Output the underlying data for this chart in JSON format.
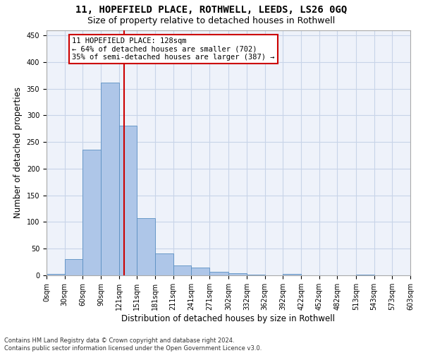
{
  "title1": "11, HOPEFIELD PLACE, ROTHWELL, LEEDS, LS26 0GQ",
  "title2": "Size of property relative to detached houses in Rothwell",
  "xlabel": "Distribution of detached houses by size in Rothwell",
  "ylabel": "Number of detached properties",
  "footnote": "Contains HM Land Registry data © Crown copyright and database right 2024.\nContains public sector information licensed under the Open Government Licence v3.0.",
  "bar_values": [
    3,
    31,
    236,
    362,
    280,
    107,
    41,
    19,
    14,
    6,
    4,
    1,
    0,
    2,
    0,
    0,
    0,
    1,
    0,
    0
  ],
  "bin_edges": [
    0,
    30,
    60,
    90,
    120,
    150,
    180,
    210,
    240,
    270,
    302,
    332,
    362,
    392,
    422,
    452,
    482,
    513,
    543,
    573,
    603
  ],
  "tick_labels": [
    "0sqm",
    "30sqm",
    "60sqm",
    "90sqm",
    "121sqm",
    "151sqm",
    "181sqm",
    "211sqm",
    "241sqm",
    "271sqm",
    "302sqm",
    "332sqm",
    "362sqm",
    "392sqm",
    "422sqm",
    "452sqm",
    "482sqm",
    "513sqm",
    "543sqm",
    "573sqm",
    "603sqm"
  ],
  "bar_color": "#aec6e8",
  "bar_edge_color": "#5a8fc2",
  "vline_x": 128,
  "vline_color": "#cc0000",
  "annotation_text": "11 HOPEFIELD PLACE: 128sqm\n← 64% of detached houses are smaller (702)\n35% of semi-detached houses are larger (387) →",
  "ylim": [
    0,
    460
  ],
  "yticks": [
    0,
    50,
    100,
    150,
    200,
    250,
    300,
    350,
    400,
    450
  ],
  "background_color": "#eef2fa",
  "grid_color": "#c8d4e8",
  "title1_fontsize": 10,
  "title2_fontsize": 9,
  "xlabel_fontsize": 8.5,
  "ylabel_fontsize": 8.5,
  "tick_fontsize": 7,
  "annot_fontsize": 7.5
}
